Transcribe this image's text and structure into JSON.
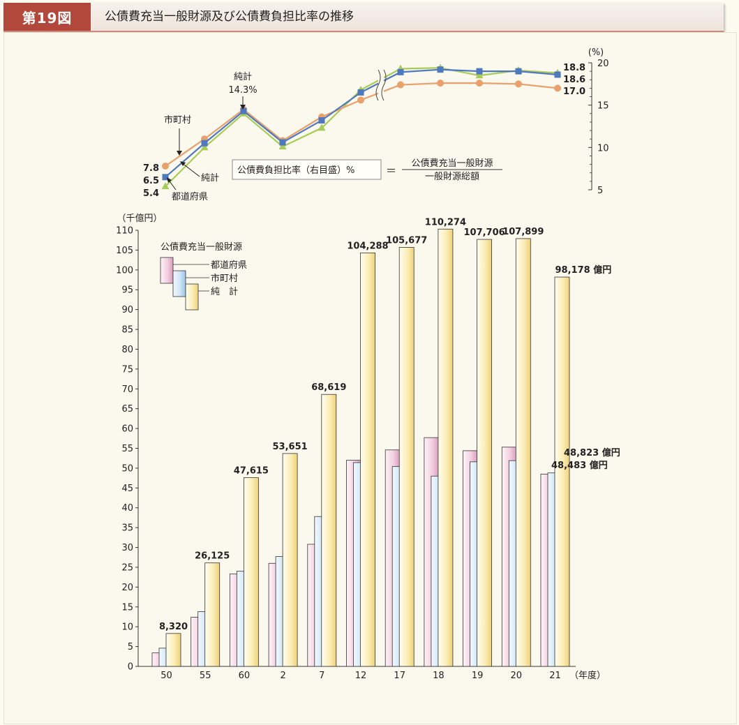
{
  "header": {
    "figure_number": "第19図",
    "title": "公債費充当一般財源及び公債費負担比率の推移"
  },
  "colors": {
    "prefecture": "#f0c6d8",
    "municipality": "#c5dff3",
    "total": "#fbe9a8",
    "line_municipality": "#e9a06a",
    "line_total": "#4f79be",
    "line_prefecture": "#a9cc58"
  },
  "chart_data": [
    {
      "type": "line",
      "name": "公債費負担比率",
      "x": [
        "50",
        "55",
        "60",
        "2",
        "7",
        "12",
        "17",
        "18",
        "19",
        "20",
        "21"
      ],
      "series": [
        {
          "name": "市町村",
          "values": [
            7.8,
            11.0,
            14.5,
            10.8,
            13.6,
            15.6,
            17.4,
            17.6,
            17.6,
            17.5,
            17.0
          ]
        },
        {
          "name": "純計",
          "values": [
            6.5,
            10.5,
            14.3,
            10.6,
            13.2,
            16.5,
            18.9,
            19.2,
            19.0,
            19.0,
            18.6
          ]
        },
        {
          "name": "都道府県",
          "values": [
            5.4,
            10.0,
            14.0,
            10.1,
            12.3,
            16.8,
            19.3,
            19.4,
            18.5,
            19.1,
            18.8
          ]
        }
      ],
      "ylabel": "(%)",
      "ylim": [
        5,
        20
      ],
      "yticks": [
        5,
        10,
        15,
        20
      ],
      "axis_break_after": "12",
      "annotations": {
        "total_peak_label": "純計",
        "total_peak_value": "14.3%",
        "label_municipality": "市町村",
        "label_total": "純計",
        "label_prefecture": "都道府県",
        "start_municipality": "7.8",
        "start_total": "6.5",
        "start_prefecture": "5.4",
        "end_prefecture": "18.8",
        "end_total": "18.6",
        "end_municipality": "17.0"
      },
      "formula": {
        "box": "公債費負担比率（右目盛）%",
        "equals": "＝",
        "numerator": "公債費充当一般財源",
        "denominator": "一般財源総額"
      }
    },
    {
      "type": "bar",
      "name": "公債費充当一般財源",
      "categories": [
        "50",
        "55",
        "60",
        "2",
        "7",
        "12",
        "17",
        "18",
        "19",
        "20",
        "21"
      ],
      "xlabel": "（年度）",
      "ylabel": "（千億円）",
      "ylim": [
        0,
        110
      ],
      "yticks": [
        0,
        5,
        10,
        15,
        20,
        25,
        30,
        35,
        40,
        45,
        50,
        55,
        60,
        65,
        70,
        75,
        80,
        85,
        90,
        95,
        100,
        105,
        110
      ],
      "legend_title": "公債費充当一般財源",
      "series": [
        {
          "name": "都道府県",
          "values": [
            3.4,
            12.4,
            23.3,
            26.0,
            30.8,
            52.0,
            54.6,
            57.7,
            54.4,
            55.3,
            48.5
          ]
        },
        {
          "name": "市町村",
          "values": [
            4.6,
            13.8,
            24.0,
            27.7,
            37.8,
            51.4,
            50.4,
            48.0,
            51.6,
            51.9,
            48.8
          ]
        },
        {
          "name": "純　計",
          "values": [
            8.3,
            26.1,
            47.6,
            53.7,
            68.6,
            104.3,
            105.7,
            110.3,
            107.7,
            107.9,
            98.2
          ]
        }
      ],
      "data_labels": [
        "8,320",
        "26,125",
        "47,615",
        "53,651",
        "68,619",
        "104,288",
        "105,677",
        "110,274",
        "107,706",
        "107,899",
        "98,178 億円"
      ],
      "last_labels": {
        "municipality": "48,823 億円",
        "prefecture": "48,483 億円"
      }
    }
  ]
}
